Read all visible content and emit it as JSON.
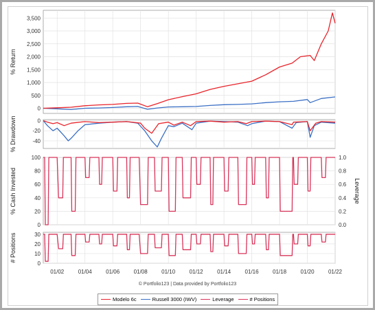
{
  "credit": "© Portfolio123 | Data provided by Portfolio123",
  "legend": [
    {
      "name": "Modelo 6c",
      "color": "#e8232a"
    },
    {
      "name": "Russell 3000 (IWV)",
      "color": "#3a6fc4"
    },
    {
      "name": "Leverage",
      "color": "#d8345a"
    },
    {
      "name": "# Positions",
      "color": "#d8345a"
    }
  ],
  "chart_data": [
    {
      "type": "line",
      "ylabel": "% Return",
      "ylim": [
        -200,
        3800
      ],
      "yticks": [
        "3,500",
        "3,000",
        "2,500",
        "2,000",
        "1,500",
        "1,000",
        "500",
        "0"
      ],
      "ytick_values": [
        3500,
        3000,
        2500,
        2000,
        1500,
        1000,
        500,
        0
      ],
      "series": [
        {
          "name": "Modelo 6c",
          "color": "#e8232a",
          "x": [
            2001.0,
            2002.0,
            2003.0,
            2004.0,
            2005.0,
            2006.0,
            2007.0,
            2007.8,
            2008.5,
            2009.2,
            2010.0,
            2011.0,
            2012.0,
            2013.0,
            2014.0,
            2015.0,
            2016.0,
            2017.0,
            2018.0,
            2018.9,
            2019.5,
            2020.2,
            2020.5,
            2021.0,
            2021.5,
            2021.8,
            2022.0
          ],
          "y": [
            0,
            20,
            40,
            100,
            130,
            150,
            190,
            200,
            60,
            180,
            330,
            450,
            560,
            730,
            850,
            950,
            1050,
            1300,
            1600,
            1750,
            2000,
            2050,
            1850,
            2500,
            3000,
            3700,
            3300
          ]
        },
        {
          "name": "Russell 3000 (IWV)",
          "color": "#3a6fc4",
          "x": [
            2001.0,
            2002.0,
            2003.0,
            2004.0,
            2005.0,
            2006.0,
            2007.0,
            2007.8,
            2008.5,
            2009.2,
            2010.0,
            2011.0,
            2012.0,
            2013.0,
            2014.0,
            2015.0,
            2016.0,
            2017.0,
            2018.0,
            2019.0,
            2020.0,
            2020.2,
            2021.0,
            2022.0
          ],
          "y": [
            0,
            -20,
            -50,
            0,
            10,
            30,
            60,
            70,
            -40,
            10,
            50,
            60,
            70,
            110,
            140,
            150,
            170,
            220,
            250,
            270,
            340,
            220,
            380,
            440
          ]
        }
      ]
    },
    {
      "type": "area",
      "ylabel": "% Drawdown",
      "ylim": [
        -55,
        2
      ],
      "yticks": [
        "0",
        "-20",
        "-40"
      ],
      "ytick_values": [
        0,
        -20,
        -40
      ],
      "series": [
        {
          "name": "Modelo 6c",
          "color": "#e8232a",
          "x": [
            2001.0,
            2001.3,
            2001.7,
            2002.0,
            2002.5,
            2003.0,
            2004.0,
            2005.0,
            2006.0,
            2007.0,
            2008.0,
            2008.3,
            2008.8,
            2009.3,
            2010.0,
            2010.4,
            2011.0,
            2011.6,
            2012.0,
            2013.0,
            2014.0,
            2015.0,
            2015.6,
            2016.0,
            2017.0,
            2018.0,
            2018.9,
            2019.0,
            2020.0,
            2020.2,
            2020.6,
            2021.0,
            2022.0
          ],
          "y": [
            0,
            -3,
            -6,
            -4,
            -10,
            -5,
            -2,
            -4,
            -3,
            -2,
            -5,
            -15,
            -25,
            -6,
            -3,
            -9,
            -3,
            -10,
            -2,
            -1,
            -3,
            -2,
            -6,
            -2,
            -1,
            -2,
            -8,
            -3,
            -2,
            -20,
            -5,
            -2,
            -3
          ]
        },
        {
          "name": "Russell 3000 (IWV)",
          "color": "#3a6fc4",
          "x": [
            2001.0,
            2001.3,
            2001.7,
            2002.0,
            2002.5,
            2002.8,
            2003.0,
            2003.5,
            2004.0,
            2005.0,
            2006.0,
            2007.0,
            2007.8,
            2008.3,
            2008.8,
            2009.2,
            2009.5,
            2010.0,
            2010.4,
            2011.0,
            2011.7,
            2012.0,
            2013.0,
            2014.0,
            2015.0,
            2015.7,
            2016.0,
            2017.0,
            2018.0,
            2018.9,
            2019.2,
            2020.0,
            2020.2,
            2020.5,
            2021.0,
            2022.0
          ],
          "y": [
            0,
            -10,
            -20,
            -15,
            -30,
            -40,
            -35,
            -20,
            -8,
            -5,
            -3,
            -2,
            -5,
            -20,
            -40,
            -52,
            -35,
            -10,
            -12,
            -5,
            -18,
            -5,
            -1,
            -2,
            -3,
            -10,
            -6,
            -1,
            -2,
            -15,
            -4,
            -2,
            -33,
            -10,
            -3,
            -5
          ]
        }
      ]
    },
    {
      "type": "line",
      "ylabel": "% Cash Invested",
      "y2label": "Leverage",
      "ylim": [
        0,
        100
      ],
      "y2lim": [
        0,
        1.0
      ],
      "yticks": [
        "100",
        "80",
        "60",
        "40",
        "20",
        "0"
      ],
      "ytick_values": [
        100,
        80,
        60,
        40,
        20,
        0
      ],
      "y2ticks": [
        "1.0",
        "0.8",
        "0.6",
        "0.4",
        "0.2",
        "0.0"
      ],
      "y2tick_values": [
        1.0,
        0.8,
        0.6,
        0.4,
        0.2,
        0.0
      ],
      "series": [
        {
          "name": "Leverage",
          "color": "#d8345a",
          "x": [
            2001.0,
            2001.1,
            2001.15,
            2001.35,
            2001.4,
            2002.0,
            2002.1,
            2002.4,
            2002.45,
            2003.0,
            2003.05,
            2003.3,
            2003.35,
            2004.0,
            2004.05,
            2004.3,
            2004.35,
            2005.0,
            2005.05,
            2005.2,
            2005.25,
            2006.0,
            2006.05,
            2006.3,
            2006.35,
            2007.0,
            2007.05,
            2007.2,
            2007.25,
            2007.9,
            2008.0,
            2008.5,
            2008.55,
            2009.0,
            2009.05,
            2009.5,
            2009.55,
            2010.0,
            2010.05,
            2010.5,
            2010.55,
            2011.0,
            2011.05,
            2011.6,
            2011.65,
            2012.0,
            2012.05,
            2012.3,
            2012.35,
            2013.0,
            2013.05,
            2013.2,
            2013.25,
            2014.0,
            2014.05,
            2014.3,
            2014.35,
            2015.0,
            2015.05,
            2015.6,
            2015.65,
            2016.0,
            2016.05,
            2016.2,
            2016.25,
            2017.0,
            2017.05,
            2017.2,
            2017.25,
            2018.0,
            2018.05,
            2018.9,
            2018.95,
            2019.0,
            2019.05,
            2019.3,
            2019.35,
            2020.0,
            2020.05,
            2020.2,
            2020.25,
            2021.0,
            2021.05,
            2021.3,
            2021.35,
            2022.0
          ],
          "y": [
            100,
            100,
            0,
            0,
            100,
            100,
            40,
            40,
            100,
            100,
            20,
            20,
            100,
            100,
            70,
            70,
            100,
            100,
            60,
            60,
            100,
            100,
            50,
            50,
            100,
            100,
            40,
            40,
            100,
            100,
            30,
            30,
            100,
            100,
            50,
            50,
            100,
            100,
            20,
            20,
            100,
            100,
            40,
            40,
            100,
            100,
            60,
            60,
            100,
            100,
            30,
            30,
            100,
            100,
            50,
            50,
            100,
            100,
            30,
            30,
            100,
            100,
            60,
            60,
            100,
            100,
            40,
            40,
            100,
            100,
            20,
            20,
            100,
            100,
            60,
            60,
            100,
            100,
            50,
            50,
            100,
            100,
            70,
            70,
            100,
            100
          ]
        }
      ]
    },
    {
      "type": "line",
      "ylabel": "# Positions",
      "ylim": [
        0,
        32
      ],
      "yticks": [
        "30",
        "20",
        "10",
        "0"
      ],
      "ytick_values": [
        30,
        20,
        10,
        0
      ],
      "xticks": [
        "01/02",
        "01/04",
        "01/06",
        "01/08",
        "01/10",
        "01/12",
        "01/14",
        "01/16",
        "01/18",
        "01/20",
        "01/22"
      ],
      "xtick_values": [
        2002,
        2004,
        2006,
        2008,
        2010,
        2012,
        2014,
        2016,
        2018,
        2020,
        2022
      ],
      "series": [
        {
          "name": "# Positions",
          "color": "#d8345a",
          "x": [
            2001.0,
            2001.1,
            2001.15,
            2001.35,
            2001.4,
            2002.0,
            2002.1,
            2002.4,
            2002.45,
            2003.0,
            2003.05,
            2003.3,
            2003.35,
            2004.0,
            2004.05,
            2004.3,
            2004.35,
            2005.0,
            2005.05,
            2005.2,
            2005.25,
            2006.0,
            2006.05,
            2006.3,
            2006.35,
            2007.0,
            2007.05,
            2007.2,
            2007.25,
            2007.9,
            2008.0,
            2008.5,
            2008.55,
            2009.0,
            2009.05,
            2009.5,
            2009.55,
            2010.0,
            2010.05,
            2010.5,
            2010.55,
            2011.0,
            2011.05,
            2011.6,
            2011.65,
            2012.0,
            2012.05,
            2012.3,
            2012.35,
            2013.0,
            2013.05,
            2013.2,
            2013.25,
            2014.0,
            2014.05,
            2014.3,
            2014.35,
            2015.0,
            2015.05,
            2015.6,
            2015.65,
            2016.0,
            2016.05,
            2016.2,
            2016.25,
            2017.0,
            2017.05,
            2017.2,
            2017.25,
            2018.0,
            2018.05,
            2018.9,
            2018.95,
            2019.0,
            2019.05,
            2019.3,
            2019.35,
            2020.0,
            2020.05,
            2020.2,
            2020.25,
            2021.0,
            2021.05,
            2021.3,
            2021.35,
            2022.0
          ],
          "y": [
            30,
            30,
            2,
            2,
            30,
            30,
            15,
            15,
            30,
            30,
            8,
            8,
            30,
            30,
            22,
            22,
            30,
            30,
            20,
            20,
            30,
            30,
            18,
            18,
            30,
            30,
            14,
            14,
            30,
            30,
            10,
            10,
            30,
            30,
            16,
            16,
            30,
            30,
            8,
            8,
            30,
            30,
            14,
            14,
            30,
            30,
            20,
            20,
            30,
            30,
            12,
            12,
            30,
            30,
            18,
            18,
            30,
            30,
            10,
            10,
            30,
            30,
            20,
            20,
            30,
            30,
            14,
            14,
            30,
            30,
            8,
            8,
            30,
            30,
            20,
            20,
            30,
            30,
            18,
            18,
            30,
            30,
            22,
            22,
            30,
            30
          ]
        }
      ]
    }
  ]
}
